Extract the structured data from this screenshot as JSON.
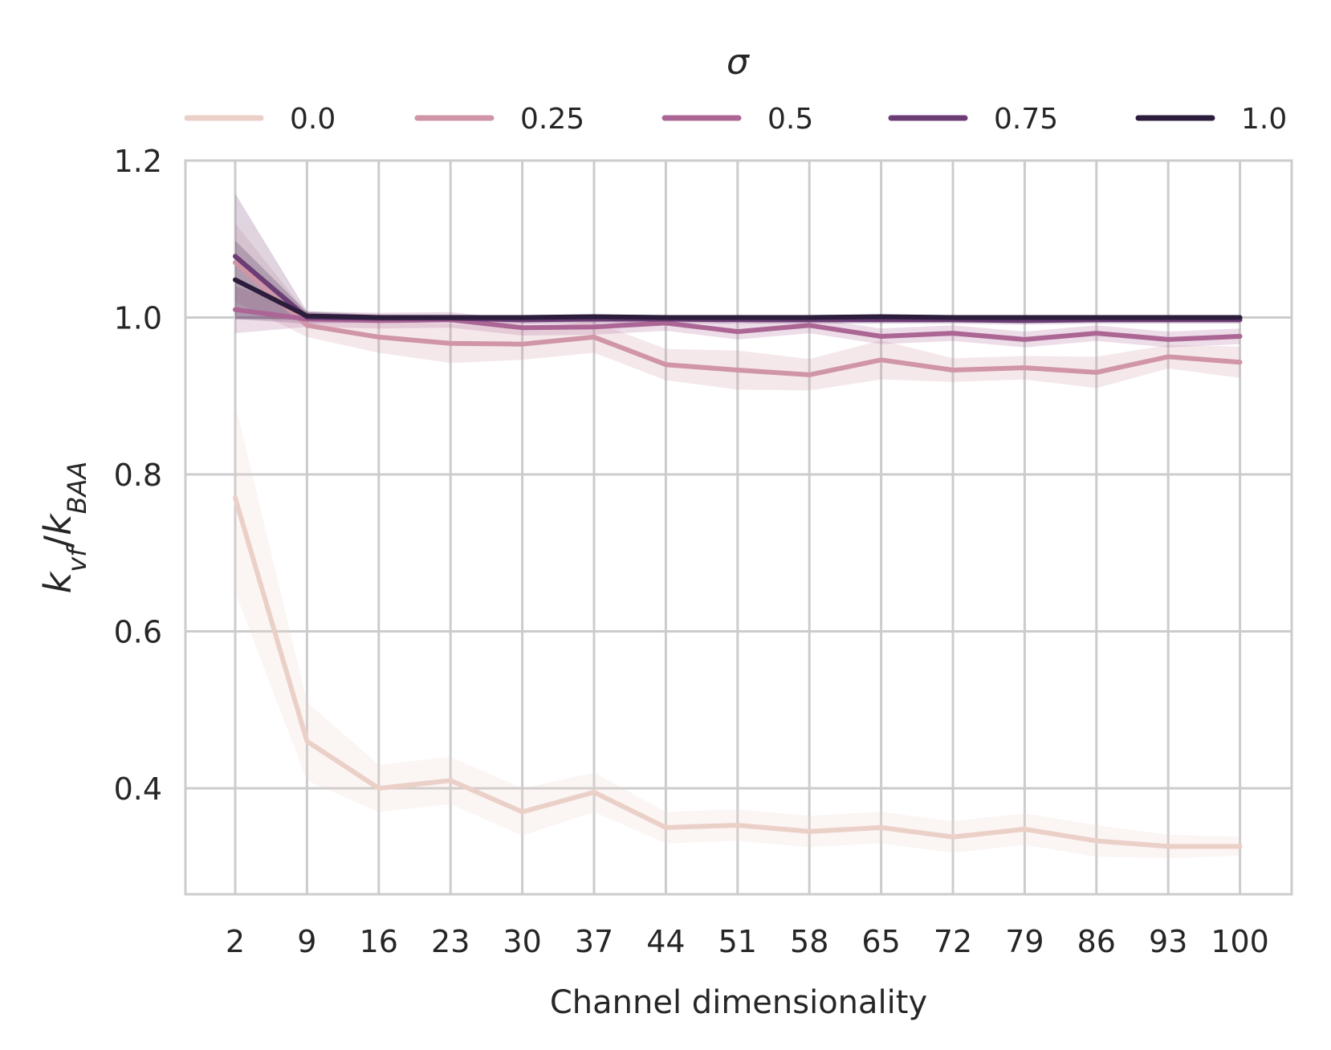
{
  "chart_data": {
    "type": "line",
    "title": "",
    "legend_title": "σ",
    "legend_position": "top",
    "xlabel": "Channel dimensionality",
    "ylabel": {
      "base": "k",
      "num_sub": "vf",
      "den_base": "k",
      "den_sub": "BAA"
    },
    "x": [
      "2",
      "9",
      "16",
      "23",
      "30",
      "37",
      "44",
      "51",
      "58",
      "65",
      "72",
      "79",
      "86",
      "93",
      "100"
    ],
    "ylim": [
      0.265,
      1.2
    ],
    "yticks": [
      "0.4",
      "0.6",
      "0.8",
      "1.0",
      "1.2"
    ],
    "grid": true,
    "series": [
      {
        "name": "0.0",
        "color": "#ebd0c8",
        "values": [
          0.77,
          0.46,
          0.4,
          0.41,
          0.37,
          0.395,
          0.35,
          0.353,
          0.345,
          0.35,
          0.338,
          0.348,
          0.333,
          0.326,
          0.326
        ],
        "band": [
          0.12,
          0.05,
          0.03,
          0.03,
          0.03,
          0.025,
          0.02,
          0.02,
          0.02,
          0.02,
          0.02,
          0.02,
          0.02,
          0.015,
          0.012
        ]
      },
      {
        "name": "0.25",
        "color": "#d095a6",
        "values": [
          1.07,
          0.99,
          0.975,
          0.967,
          0.966,
          0.975,
          0.94,
          0.933,
          0.927,
          0.946,
          0.933,
          0.936,
          0.93,
          0.95,
          0.943
        ],
        "band": [
          0.05,
          0.015,
          0.02,
          0.025,
          0.02,
          0.02,
          0.02,
          0.025,
          0.02,
          0.025,
          0.015,
          0.015,
          0.02,
          0.015,
          0.02
        ]
      },
      {
        "name": "0.5",
        "color": "#ac6695",
        "values": [
          1.01,
          0.998,
          0.996,
          0.997,
          0.987,
          0.988,
          0.993,
          0.982,
          0.99,
          0.976,
          0.98,
          0.972,
          0.98,
          0.972,
          0.976
        ],
        "band": [
          0.03,
          0.01,
          0.01,
          0.01,
          0.01,
          0.01,
          0.01,
          0.01,
          0.01,
          0.01,
          0.01,
          0.01,
          0.01,
          0.01,
          0.01
        ]
      },
      {
        "name": "0.75",
        "color": "#6c3d74",
        "values": [
          1.078,
          1.0,
          0.999,
          0.999,
          0.997,
          0.998,
          0.998,
          0.997,
          0.997,
          0.997,
          0.997,
          0.996,
          0.997,
          0.997,
          0.997
        ],
        "band": [
          0.08,
          0.008,
          0.005,
          0.005,
          0.005,
          0.005,
          0.005,
          0.005,
          0.005,
          0.005,
          0.005,
          0.005,
          0.005,
          0.005,
          0.005
        ]
      },
      {
        "name": "1.0",
        "color": "#2b1d3b",
        "values": [
          1.048,
          1.002,
          1.0,
          1.0,
          1.0,
          1.001,
          1.0,
          1.0,
          1.0,
          1.001,
          1.0,
          1.0,
          1.0,
          1.0,
          1.0
        ],
        "band": [
          0.05,
          0.005,
          0.003,
          0.003,
          0.003,
          0.003,
          0.003,
          0.003,
          0.003,
          0.003,
          0.003,
          0.003,
          0.003,
          0.003,
          0.003
        ]
      }
    ]
  }
}
